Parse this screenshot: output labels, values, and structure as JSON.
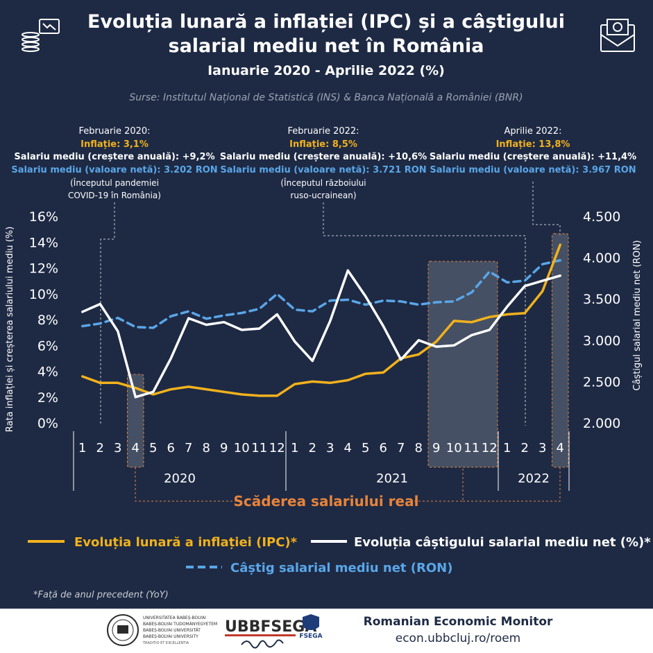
{
  "header": {
    "title_line1": "Evoluția lunară a inflației (IPC) și a câștigului",
    "title_line2": "salarial mediu net în România",
    "subtitle": "Ianuarie 2020 - Aprilie 2022 (%)",
    "sources": "Surse:  Institutul Național de Statistică (INS) & Banca Națională a României (BNR)"
  },
  "colors": {
    "background": "#1e2a44",
    "inflation": "#f2b21c",
    "wage_growth": "#ffffff",
    "wage_ron": "#5aa6e8",
    "highlight_text": "#e8843a",
    "shade": "#5a6577"
  },
  "annotations": [
    {
      "date": "Februarie 2020:",
      "inflation": "Inflație: 3,1%",
      "growth": "Salariu mediu (creștere anuală): +9,2%",
      "net": "Salariu mediu (valoare netă): 3.202 RON",
      "note1": "(Începutul pandemiei",
      "note2": "COVID-19 în România)"
    },
    {
      "date": "Februarie 2022:",
      "inflation": "Inflație: 8,5%",
      "growth": "Salariu mediu (creștere anuală): +10,6%",
      "net": "Salariu mediu (valoare netă): 3.721 RON",
      "note1": "(Începutul războiului",
      "note2": "ruso-ucrainean)"
    },
    {
      "date": "Aprilie 2022:",
      "inflation": "Inflație: 13,8%",
      "growth": "Salariu mediu (creștere anuală): +11,4%",
      "net": "Salariu mediu (valoare netă): 3.967 RON",
      "note1": "",
      "note2": ""
    }
  ],
  "chart_data": {
    "type": "line",
    "x_months": [
      "1",
      "2",
      "3",
      "4",
      "5",
      "6",
      "7",
      "8",
      "9",
      "10",
      "11",
      "12",
      "1",
      "2",
      "3",
      "4",
      "5",
      "6",
      "7",
      "8",
      "9",
      "10",
      "11",
      "12",
      "1",
      "2",
      "3",
      "4"
    ],
    "years": [
      "2020",
      "2021",
      "2022"
    ],
    "ylabel_left": "Rata inflației și creșterea salariului mediu (%)",
    "ylabel_right": "Câștigul salarial mediu net (RON)",
    "y_left_ticks": [
      "0%",
      "2%",
      "4%",
      "6%",
      "8%",
      "10%",
      "12%",
      "14%",
      "16%"
    ],
    "y_right_ticks": [
      "2.000",
      "2.500",
      "3.000",
      "3.500",
      "4.000",
      "4.500"
    ],
    "ylim_left": [
      0,
      16
    ],
    "ylim_right": [
      2000,
      4500
    ],
    "series": [
      {
        "name": "Evoluția lunară a inflației (IPC)*",
        "axis": "left",
        "values": [
          3.6,
          3.1,
          3.1,
          2.7,
          2.2,
          2.6,
          2.8,
          2.6,
          2.4,
          2.2,
          2.1,
          2.1,
          3.0,
          3.2,
          3.1,
          3.3,
          3.8,
          3.9,
          5.0,
          5.3,
          6.3,
          7.9,
          7.8,
          8.2,
          8.4,
          8.5,
          10.2,
          13.8
        ]
      },
      {
        "name": "Evoluția câștigului salarial mediu net (%)*",
        "axis": "left",
        "values": [
          8.6,
          9.2,
          7.1,
          2.0,
          2.4,
          5.0,
          8.1,
          7.6,
          7.8,
          7.2,
          7.3,
          8.4,
          6.3,
          4.8,
          7.9,
          11.8,
          9.8,
          7.5,
          4.9,
          6.4,
          5.9,
          6.0,
          6.8,
          7.2,
          9.0,
          10.6,
          11.0,
          11.4
        ]
      },
      {
        "name": "Câștig salarial mediu net (RON)",
        "axis": "right",
        "values": [
          3170,
          3202,
          3270,
          3160,
          3150,
          3290,
          3350,
          3260,
          3300,
          3330,
          3380,
          3560,
          3370,
          3350,
          3480,
          3490,
          3430,
          3480,
          3470,
          3430,
          3460,
          3470,
          3580,
          3830,
          3700,
          3721,
          3920,
          3967
        ]
      }
    ],
    "shaded_months": [
      "4 (2020)",
      "9-12 (2021)",
      "4 (2022)"
    ],
    "shaded_label": "Scăderea salariului real",
    "legend_position": "bottom",
    "grid": false
  },
  "footnote": "*Față de anul precedent (YoY)",
  "footer": {
    "monitor_title": "Romanian Economic Monitor",
    "monitor_url": "econ.ubbcluj.ro/roem",
    "ubb_text": [
      "UNIVERSITATEA BABEȘ-BOLYAI",
      "BABEȘ-BOLYAI TUDOMÁNYEGYETEM",
      "BABEȘ-BOLYAI UNIVERSITÄT",
      "BABEȘ-BOLYAI UNIVERSITY",
      "TRADITIO ET EXCELLENTIA"
    ],
    "fsega_text": "UBBFSEGA",
    "fsega_small": "FSEGA"
  }
}
